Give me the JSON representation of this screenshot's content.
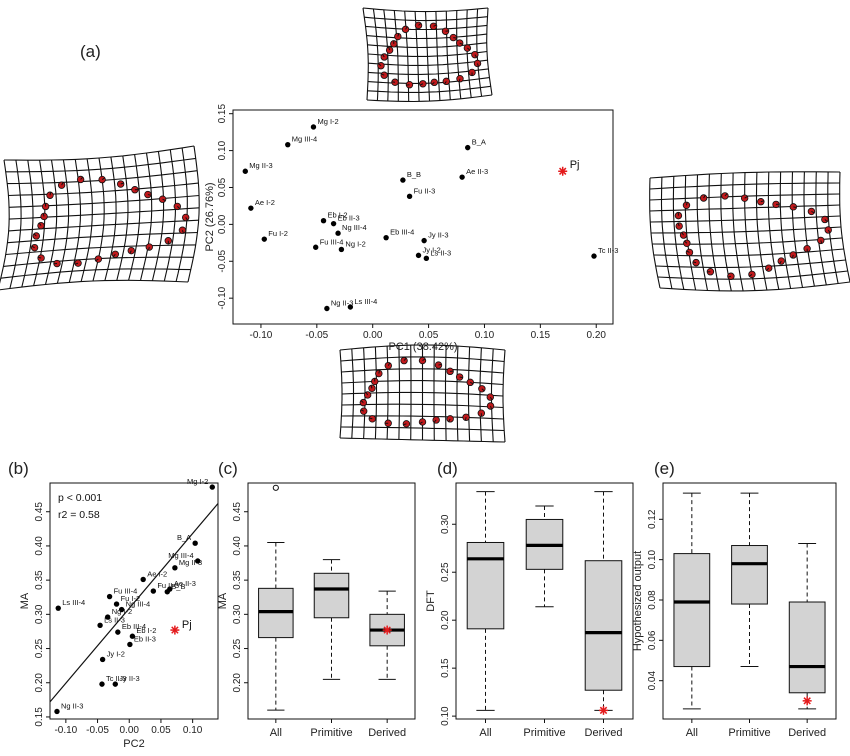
{
  "panels": {
    "a": {
      "label": "(a)",
      "chart_data": {
        "type": "scatter",
        "xlabel": "PC1 (38.42%)",
        "ylabel": "PC2 (26.76%)",
        "xlim": [
          -0.125,
          0.215
        ],
        "ylim": [
          -0.135,
          0.155
        ],
        "xticks": [
          "-0.10",
          "-0.05",
          "0.00",
          "0.05",
          "0.10",
          "0.15",
          "0.20"
        ],
        "xtick_values": [
          -0.1,
          -0.05,
          0.0,
          0.05,
          0.1,
          0.15,
          0.2
        ],
        "yticks": [
          "-0.10",
          "-0.05",
          "0.00",
          "0.05",
          "0.10",
          "0.15"
        ],
        "ytick_values": [
          -0.1,
          -0.05,
          0.0,
          0.05,
          0.1,
          0.15
        ],
        "points": [
          {
            "label": "Mg I-2",
            "x": -0.053,
            "y": 0.132
          },
          {
            "label": "Mg III-4",
            "x": -0.076,
            "y": 0.108
          },
          {
            "label": "Mg II-3",
            "x": -0.114,
            "y": 0.072
          },
          {
            "label": "B_A",
            "x": 0.085,
            "y": 0.104
          },
          {
            "label": "B_B",
            "x": 0.027,
            "y": 0.06
          },
          {
            "label": "Ae II-3",
            "x": 0.08,
            "y": 0.064
          },
          {
            "label": "Fu II-3",
            "x": 0.033,
            "y": 0.038
          },
          {
            "label": "Ae I-2",
            "x": -0.109,
            "y": 0.022
          },
          {
            "label": "Eb I-2",
            "x": -0.044,
            "y": 0.005
          },
          {
            "label": "Eb II-3",
            "x": -0.035,
            "y": 0.001
          },
          {
            "label": "Ng III-4",
            "x": -0.031,
            "y": -0.012
          },
          {
            "label": "Fu I-2",
            "x": -0.097,
            "y": -0.02
          },
          {
            "label": "Eb III-4",
            "x": 0.012,
            "y": -0.018
          },
          {
            "label": "Jy II-3",
            "x": 0.046,
            "y": -0.022
          },
          {
            "label": "Fu III-4",
            "x": -0.051,
            "y": -0.031
          },
          {
            "label": "Ng I-2",
            "x": -0.028,
            "y": -0.034
          },
          {
            "label": "Jy I-2",
            "x": 0.041,
            "y": -0.042
          },
          {
            "label": "Ls II-3",
            "x": 0.048,
            "y": -0.046
          },
          {
            "label": "Tc II-3",
            "x": 0.198,
            "y": -0.043
          },
          {
            "label": "Ng II-3",
            "x": -0.041,
            "y": -0.114
          },
          {
            "label": "Ls III-4",
            "x": -0.02,
            "y": -0.112
          }
        ],
        "highlight": {
          "label": "Pj",
          "x": 0.17,
          "y": 0.072,
          "color": "#e41a1c"
        }
      }
    },
    "b": {
      "label": "(b)",
      "chart_data": {
        "type": "scatter",
        "xlabel": "PC2",
        "ylabel": "MA",
        "xlim": [
          -0.125,
          0.14
        ],
        "ylim": [
          0.147,
          0.492
        ],
        "xticks": [
          "-0.10",
          "-0.05",
          "0.00",
          "0.05",
          "0.10"
        ],
        "xtick_values": [
          -0.1,
          -0.05,
          0.0,
          0.05,
          0.1
        ],
        "yticks": [
          "0.15",
          "0.20",
          "0.25",
          "0.30",
          "0.35",
          "0.40",
          "0.45"
        ],
        "ytick_values": [
          0.15,
          0.2,
          0.25,
          0.3,
          0.35,
          0.4,
          0.45
        ],
        "annotations": [
          "p < 0.001",
          "r2 = 0.58"
        ],
        "regression_line": {
          "x": [
            -0.125,
            0.14
          ],
          "y": [
            0.172,
            0.462
          ]
        },
        "points": [
          {
            "label": "Mg I-2",
            "x": 0.131,
            "y": 0.486
          },
          {
            "label": "B_A",
            "x": 0.104,
            "y": 0.404
          },
          {
            "label": "Mg II-3",
            "x": 0.072,
            "y": 0.368
          },
          {
            "label": "Mg III-4",
            "x": 0.108,
            "y": 0.378
          },
          {
            "label": "Ae I-2",
            "x": 0.022,
            "y": 0.351
          },
          {
            "label": "Ae II-3",
            "x": 0.064,
            "y": 0.337
          },
          {
            "label": "B_B",
            "x": 0.06,
            "y": 0.333
          },
          {
            "label": "Fu II-3",
            "x": 0.038,
            "y": 0.334
          },
          {
            "label": "Fu III-4",
            "x": -0.031,
            "y": 0.326
          },
          {
            "label": "Fu I-2",
            "x": -0.02,
            "y": 0.315
          },
          {
            "label": "Ls III-4",
            "x": -0.112,
            "y": 0.309
          },
          {
            "label": "Ng III-4",
            "x": -0.012,
            "y": 0.307
          },
          {
            "label": "Ng I-2",
            "x": -0.034,
            "y": 0.296
          },
          {
            "label": "Ls II-3",
            "x": -0.046,
            "y": 0.284
          },
          {
            "label": "Eb III-4",
            "x": -0.018,
            "y": 0.274
          },
          {
            "label": "Eb I-2",
            "x": 0.005,
            "y": 0.268
          },
          {
            "label": "Eb II-3",
            "x": 0.001,
            "y": 0.256
          },
          {
            "label": "Jy I-2",
            "x": -0.042,
            "y": 0.234
          },
          {
            "label": "Tc II-3",
            "x": -0.043,
            "y": 0.198
          },
          {
            "label": "Jy II-3",
            "x": -0.022,
            "y": 0.198
          },
          {
            "label": "Ng II-3",
            "x": -0.114,
            "y": 0.158
          }
        ],
        "highlight": {
          "label": "Pj",
          "x": 0.072,
          "y": 0.277,
          "color": "#e41a1c"
        }
      }
    },
    "c": {
      "label": "(c)",
      "chart_data": {
        "type": "boxplot",
        "ylabel": "MA",
        "ylim": [
          0.147,
          0.492
        ],
        "yticks": [
          "0.20",
          "0.25",
          "0.30",
          "0.35",
          "0.40",
          "0.45"
        ],
        "ytick_values": [
          0.2,
          0.25,
          0.3,
          0.35,
          0.4,
          0.45
        ],
        "categories": [
          "All",
          "Primitive",
          "Derived"
        ],
        "boxes": [
          {
            "min": 0.16,
            "q1": 0.266,
            "median": 0.304,
            "q3": 0.338,
            "max": 0.405,
            "outliers": [
              0.485
            ]
          },
          {
            "min": 0.205,
            "q1": 0.295,
            "median": 0.337,
            "q3": 0.36,
            "max": 0.38,
            "outliers": []
          },
          {
            "min": 0.205,
            "q1": 0.254,
            "median": 0.277,
            "q3": 0.3,
            "max": 0.334,
            "outliers": []
          }
        ],
        "highlight": {
          "category": "Derived",
          "value": 0.277,
          "color": "#e41a1c"
        }
      }
    },
    "d": {
      "label": "(d)",
      "chart_data": {
        "type": "boxplot",
        "ylabel": "DFT",
        "ylim": [
          0.097,
          0.343
        ],
        "yticks": [
          "0.10",
          "0.15",
          "0.20",
          "0.25",
          "0.30"
        ],
        "ytick_values": [
          0.1,
          0.15,
          0.2,
          0.25,
          0.3
        ],
        "categories": [
          "All",
          "Primitive",
          "Derived"
        ],
        "boxes": [
          {
            "min": 0.106,
            "q1": 0.191,
            "median": 0.264,
            "q3": 0.281,
            "max": 0.334,
            "outliers": []
          },
          {
            "min": 0.214,
            "q1": 0.253,
            "median": 0.278,
            "q3": 0.305,
            "max": 0.319,
            "outliers": []
          },
          {
            "min": 0.106,
            "q1": 0.127,
            "median": 0.187,
            "q3": 0.262,
            "max": 0.334,
            "outliers": []
          }
        ],
        "highlight": {
          "category": "Derived",
          "value": 0.106,
          "color": "#e41a1c"
        }
      }
    },
    "e": {
      "label": "(e)",
      "chart_data": {
        "type": "boxplot",
        "ylabel": "Hypothesized output",
        "ylim": [
          0.021,
          0.138
        ],
        "yticks": [
          "0.04",
          "0.06",
          "0.08",
          "0.10",
          "0.12"
        ],
        "ytick_values": [
          0.04,
          0.06,
          0.08,
          0.1,
          0.12
        ],
        "categories": [
          "All",
          "Primitive",
          "Derived"
        ],
        "boxes": [
          {
            "min": 0.026,
            "q1": 0.047,
            "median": 0.079,
            "q3": 0.103,
            "max": 0.133,
            "outliers": []
          },
          {
            "min": 0.047,
            "q1": 0.078,
            "median": 0.098,
            "q3": 0.107,
            "max": 0.133,
            "outliers": []
          },
          {
            "min": 0.026,
            "q1": 0.034,
            "median": 0.047,
            "q3": 0.079,
            "max": 0.108,
            "outliers": []
          }
        ],
        "highlight": {
          "category": "Derived",
          "value": 0.03,
          "color": "#e41a1c"
        }
      }
    }
  },
  "colors": {
    "highlight": "#e41a1c",
    "box_fill": "#d3d3d3",
    "landmark": "#c0191c",
    "axis": "#111111"
  }
}
